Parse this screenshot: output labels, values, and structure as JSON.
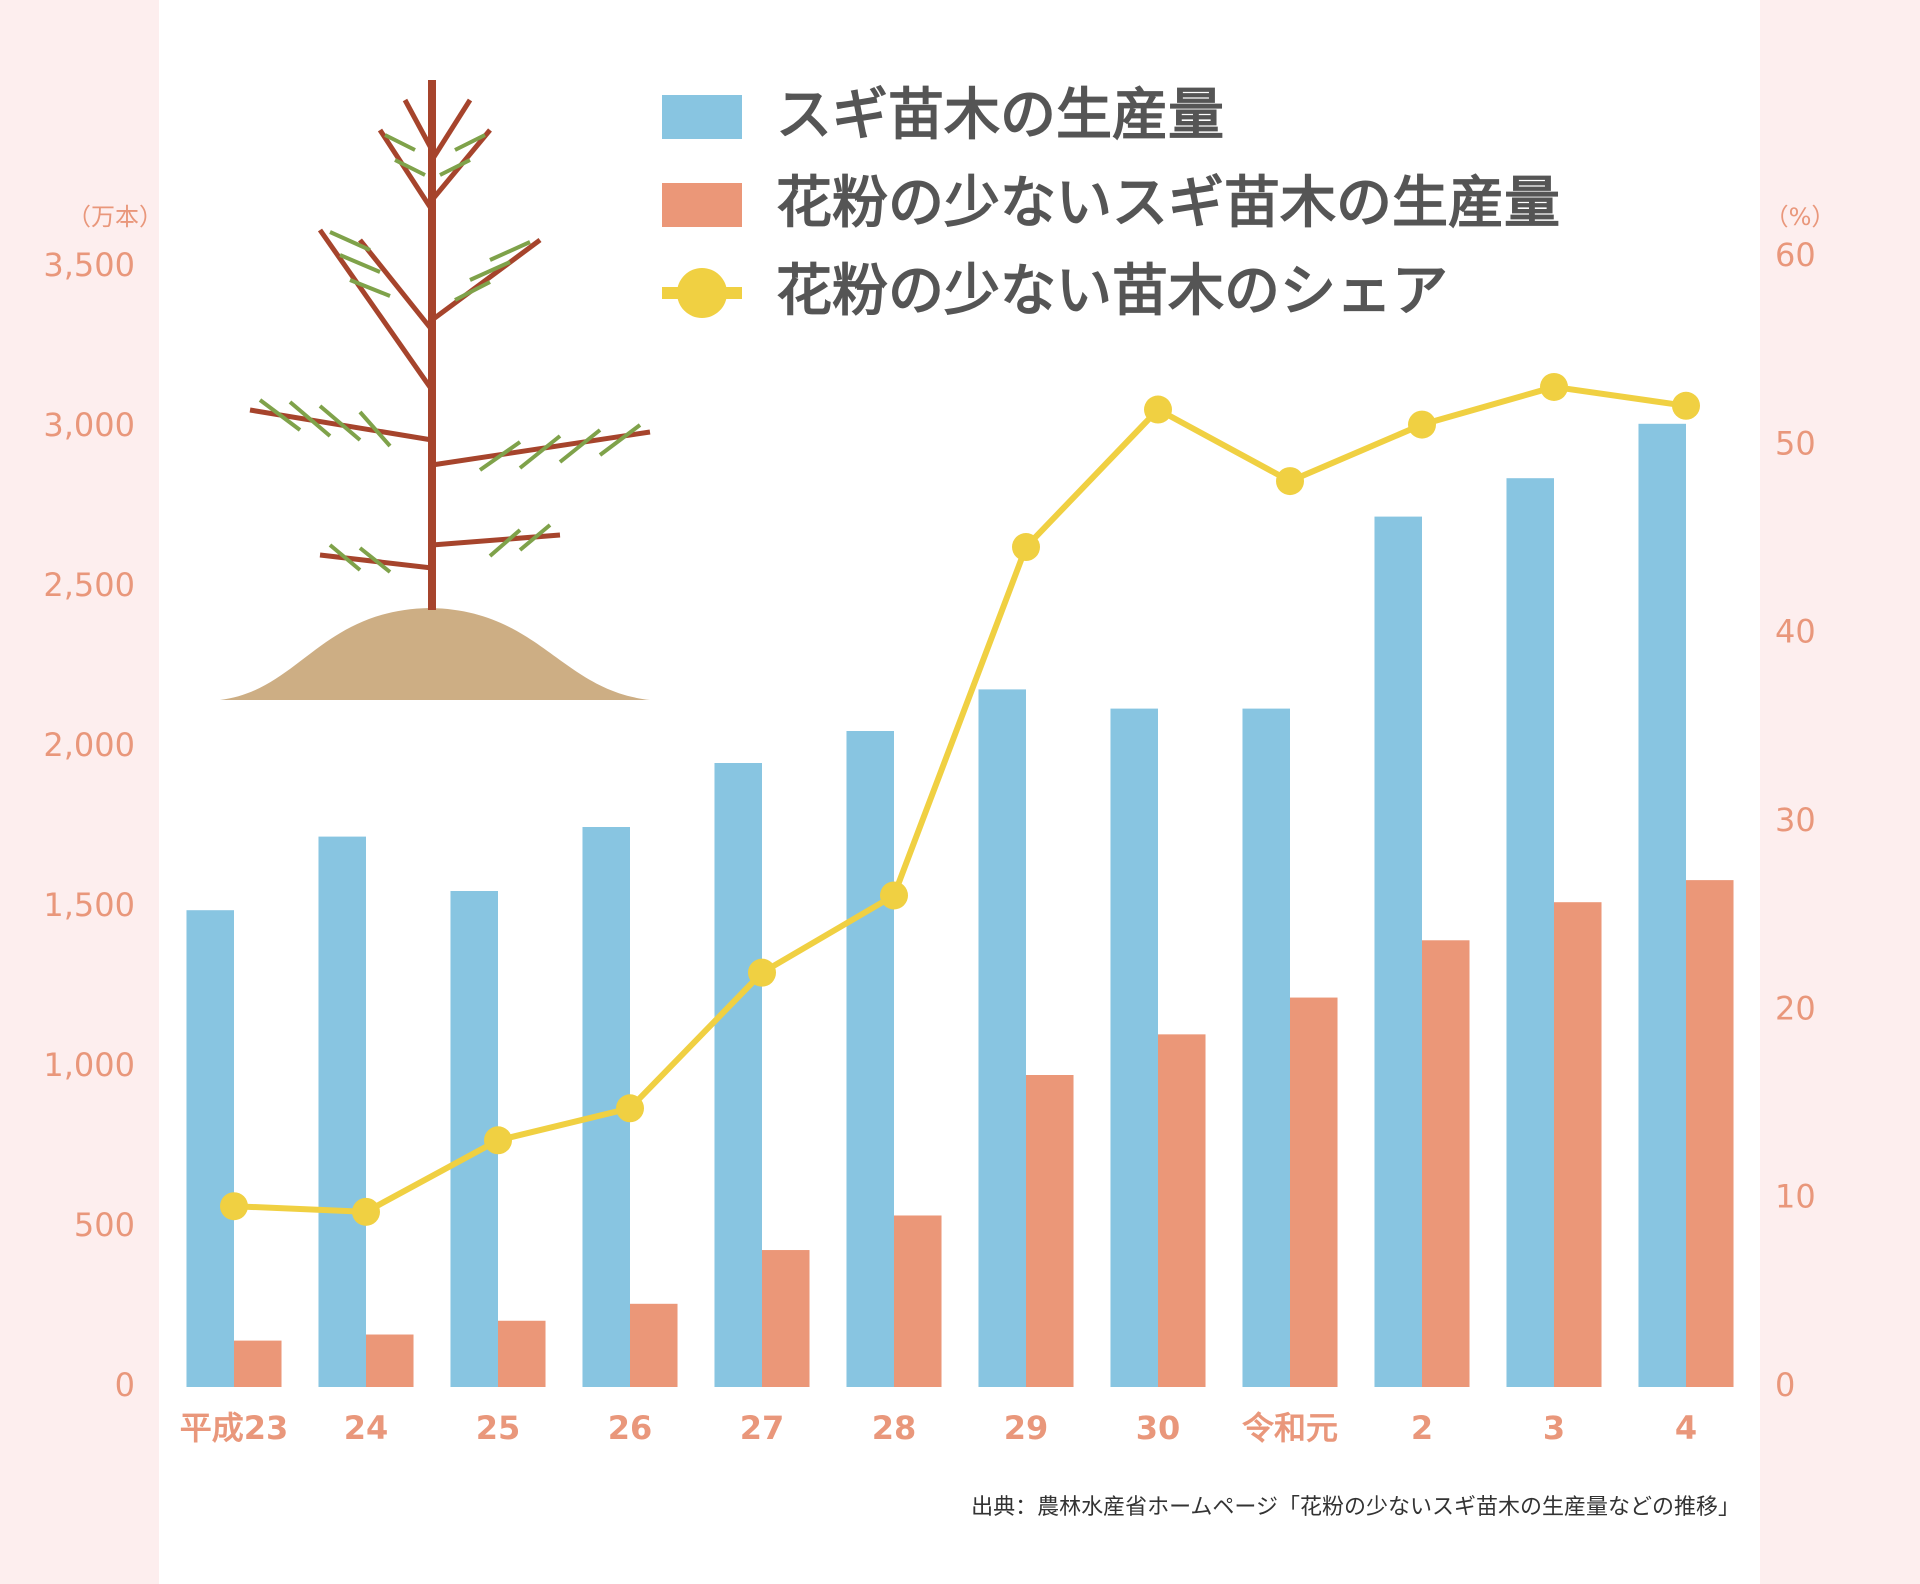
{
  "chart_data": {
    "type": "bar-line",
    "categories": [
      "平成23",
      "24",
      "25",
      "26",
      "27",
      "28",
      "29",
      "30",
      "令和元",
      "2",
      "3",
      "4"
    ],
    "y_unit": "（万本）",
    "y2_unit": "（%）",
    "series": [
      {
        "name": "スギ苗木の生産量",
        "color": "#88c5e1",
        "type": "bar",
        "values": [
          1490,
          1720,
          1550,
          1750,
          1950,
          2050,
          2180,
          2120,
          2120,
          2720,
          2840,
          3010
        ]
      },
      {
        "name": "花粉の少ないスギ苗木の生産量",
        "color": "#eb9778",
        "type": "bar",
        "values": [
          145,
          164,
          207,
          260,
          428,
          536,
          975,
          1102,
          1217,
          1396,
          1515,
          1584
        ]
      },
      {
        "name": "花粉の少ない苗木のシェア",
        "color": "#f0d042",
        "type": "line",
        "axis": "y2",
        "values": [
          9.6,
          9.3,
          13.1,
          14.8,
          22.0,
          26.1,
          44.6,
          51.9,
          48.1,
          51.1,
          53.1,
          52.1
        ]
      }
    ],
    "ylim": [
      0,
      3500
    ],
    "yticks": [
      0,
      500,
      {
        "value": 1000,
        "label": "1,000"
      },
      {
        "value": 1500,
        "label": "1,500"
      },
      {
        "value": 2000,
        "label": "2,000"
      },
      {
        "value": 2500,
        "label": "2,500"
      },
      {
        "value": 3000,
        "label": "3,000"
      },
      {
        "value": 3500,
        "label": "3,500"
      }
    ],
    "y2lim": [
      0,
      60
    ],
    "y2ticks": [
      0,
      10,
      20,
      30,
      40,
      50,
      60
    ],
    "source": "出典：農林水産省ホームページ「花粉の少ないスギ苗木の生産量などの推移」"
  }
}
